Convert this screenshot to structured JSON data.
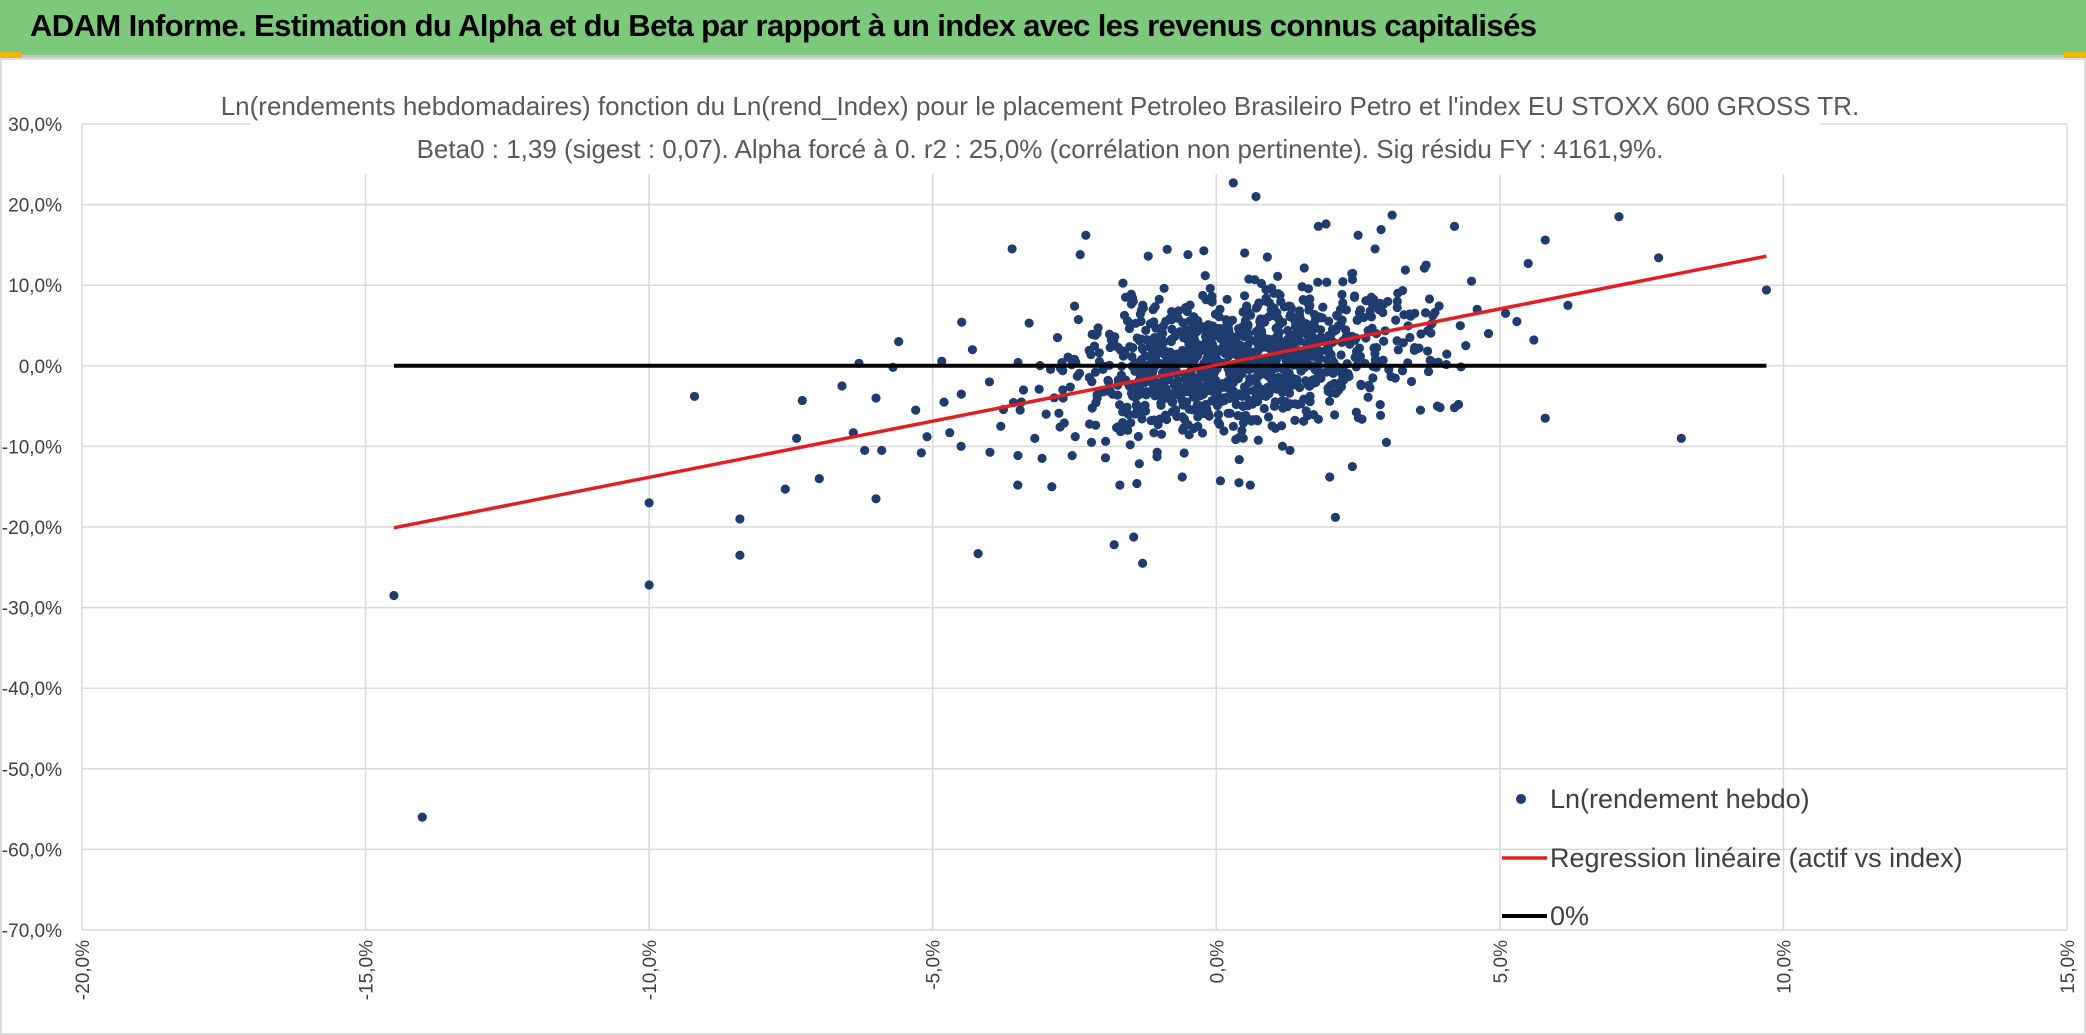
{
  "header": {
    "title": "ADAM Informe. Estimation du Alpha et du Beta par rapport à un index avec les revenus connus capitalisés"
  },
  "colors": {
    "banner": "#7dc97b",
    "points": "#1f3c6e",
    "regression": "#e02020",
    "zero_line": "#000000",
    "grid": "#d9d9d9"
  },
  "chart_data": {
    "type": "scatter",
    "title": "Ln(rendements hebdomadaires) fonction du Ln(rend_Index) pour le placement Petroleo Brasileiro Petro et l'index EU STOXX 600 GROSS TR.",
    "subtitle": "Beta0 : 1,39 (sigest : 0,07). Alpha forcé à 0. r2 : 25,0% (corrélation non pertinente). Sig résidu FY : 4161,9%.",
    "xlim": [
      -20,
      15
    ],
    "ylim": [
      -70,
      30
    ],
    "x_ticks": [
      -20,
      -15,
      -10,
      -5,
      0,
      5,
      10,
      15
    ],
    "x_tick_labels": [
      "-20,0%",
      "-15,0%",
      "-10,0%",
      "-5,0%",
      "0,0%",
      "5,0%",
      "10,0%",
      "15,0%"
    ],
    "y_ticks": [
      30,
      20,
      10,
      0,
      -10,
      -20,
      -30,
      -40,
      -50,
      -60,
      -70
    ],
    "y_tick_labels": [
      "30,0%",
      "20,0%",
      "10,0%",
      "0,0%",
      "-10,0%",
      "-20,0%",
      "-30,0%",
      "-40,0%",
      "-50,0%",
      "-60,0%",
      "-70,0%"
    ],
    "series": [
      {
        "name": "Ln(rendement hebdo)",
        "kind": "points",
        "dense_cluster": {
          "x_mean": 0.4,
          "y_mean": 0.6,
          "x_sd": 1.5,
          "y_sd": 4.3,
          "count": 1100,
          "seed": 7
        },
        "points": [
          [
            -14.5,
            -28.5
          ],
          [
            -14.0,
            -56.0
          ],
          [
            -10.0,
            -27.2
          ],
          [
            -10.0,
            -17.0
          ],
          [
            -9.2,
            -3.8
          ],
          [
            -8.4,
            -23.5
          ],
          [
            -8.4,
            -19.0
          ],
          [
            -7.6,
            -15.3
          ],
          [
            -7.4,
            -9.0
          ],
          [
            -7.3,
            -4.3
          ],
          [
            -7.0,
            -14.0
          ],
          [
            -6.6,
            -2.5
          ],
          [
            -6.4,
            -8.3
          ],
          [
            -6.3,
            0.3
          ],
          [
            -6.2,
            -10.5
          ],
          [
            -6.0,
            -16.5
          ],
          [
            -6.0,
            -4.0
          ],
          [
            -5.9,
            -10.5
          ],
          [
            -5.7,
            -0.2
          ],
          [
            -5.6,
            3.0
          ],
          [
            -5.3,
            -5.5
          ],
          [
            -5.2,
            -10.8
          ],
          [
            -5.1,
            -8.8
          ],
          [
            -4.8,
            -4.5
          ],
          [
            -4.7,
            -8.3
          ],
          [
            -4.5,
            -10.0
          ],
          [
            -4.3,
            2.0
          ],
          [
            -4.2,
            -23.3
          ],
          [
            -4.0,
            -2.0
          ],
          [
            -3.8,
            -7.5
          ],
          [
            -3.6,
            14.5
          ],
          [
            -3.5,
            -14.8
          ],
          [
            -3.4,
            -3.0
          ],
          [
            -3.3,
            5.3
          ],
          [
            -3.2,
            -9.0
          ],
          [
            -3.0,
            -6.0
          ],
          [
            -2.9,
            -15.0
          ],
          [
            -2.8,
            3.5
          ],
          [
            -2.7,
            -4.0
          ],
          [
            -2.5,
            0.8
          ],
          [
            -2.4,
            13.8
          ],
          [
            -2.3,
            16.2
          ],
          [
            -2.2,
            -9.5
          ],
          [
            -2.1,
            -4.0
          ],
          [
            -1.9,
            -2.0
          ],
          [
            -1.8,
            -22.2
          ],
          [
            -1.7,
            -14.8
          ],
          [
            -1.6,
            8.5
          ],
          [
            -1.4,
            -14.6
          ],
          [
            -1.3,
            -24.5
          ],
          [
            -1.2,
            13.6
          ],
          [
            -0.6,
            -13.8
          ],
          [
            -0.5,
            13.8
          ],
          [
            0.3,
            22.7
          ],
          [
            0.4,
            -14.5
          ],
          [
            0.5,
            14.0
          ],
          [
            0.6,
            -14.8
          ],
          [
            0.7,
            21.0
          ],
          [
            0.9,
            13.5
          ],
          [
            1.3,
            -10.5
          ],
          [
            1.8,
            17.3
          ],
          [
            2.0,
            -13.8
          ],
          [
            2.1,
            -18.8
          ],
          [
            2.4,
            -12.5
          ],
          [
            2.5,
            16.2
          ],
          [
            2.6,
            6.0
          ],
          [
            2.8,
            14.5
          ],
          [
            3.0,
            -9.5
          ],
          [
            3.1,
            18.7
          ],
          [
            3.2,
            9.0
          ],
          [
            3.5,
            6.5
          ],
          [
            3.6,
            -5.5
          ],
          [
            3.7,
            12.5
          ],
          [
            3.8,
            0.5
          ],
          [
            3.9,
            -5.0
          ],
          [
            4.2,
            17.3
          ],
          [
            4.2,
            -5.2
          ],
          [
            4.4,
            2.5
          ],
          [
            4.5,
            10.5
          ],
          [
            4.6,
            7.0
          ],
          [
            4.8,
            4.0
          ],
          [
            5.1,
            6.5
          ],
          [
            5.3,
            5.5
          ],
          [
            5.5,
            12.7
          ],
          [
            5.6,
            3.2
          ],
          [
            5.8,
            -6.5
          ],
          [
            5.8,
            15.6
          ],
          [
            6.2,
            7.5
          ],
          [
            7.1,
            18.5
          ],
          [
            7.8,
            13.4
          ],
          [
            8.2,
            -9.0
          ],
          [
            9.7,
            9.4
          ]
        ]
      },
      {
        "name": "Regression linéaire (actif vs index)",
        "kind": "line",
        "x": [
          -14.5,
          9.7
        ],
        "y": [
          -20.1,
          13.6
        ]
      },
      {
        "name": "0%",
        "kind": "line",
        "x": [
          -14.5,
          9.7
        ],
        "y": [
          0,
          0
        ]
      }
    ]
  }
}
